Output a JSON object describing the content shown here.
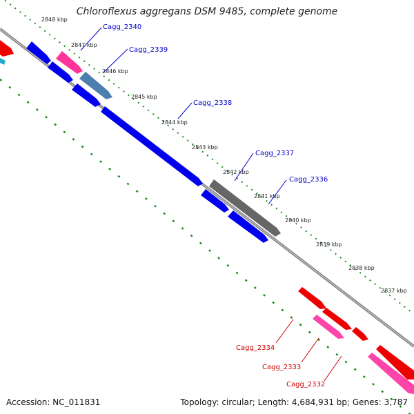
{
  "title": "Chloroflexus aggregans DSM 9485, complete genome",
  "footer": {
    "accession": "Accession: NC_011831",
    "summary": "Topology: circular; Length: 4,684,931 bp; Genes: 3,787"
  },
  "colors": {
    "forward_cds": "#0000ee",
    "forward_other": "#ff3399",
    "forward_highlight": "#4a7fb0",
    "reverse_cds": "#ee0000",
    "reverse_other": "#ff44aa",
    "unknown": "#666666",
    "backbone": "#808080",
    "tick_dots": "#1a8a1a",
    "forward_label": "#0000cc",
    "reverse_label": "#cc0000"
  },
  "ticks": [
    "2848 kbp",
    "2847 kbp",
    "2846 kbp",
    "2845 kbp",
    "2844 kbp",
    "2843 kbp",
    "2842 kbp",
    "2841 kbp",
    "2840 kbp",
    "2839 kbp",
    "2838 kbp",
    "2837 kbp"
  ],
  "genes_labeled": [
    {
      "name": "Cagg_2340",
      "strand": "forward"
    },
    {
      "name": "Cagg_2339",
      "strand": "forward"
    },
    {
      "name": "Cagg_2338",
      "strand": "forward"
    },
    {
      "name": "Cagg_2337",
      "strand": "forward"
    },
    {
      "name": "Cagg_2336",
      "strand": "forward"
    },
    {
      "name": "Cagg_2334",
      "strand": "reverse"
    },
    {
      "name": "Cagg_2333",
      "strand": "reverse"
    },
    {
      "name": "Cagg_2332",
      "strand": "reverse"
    }
  ]
}
